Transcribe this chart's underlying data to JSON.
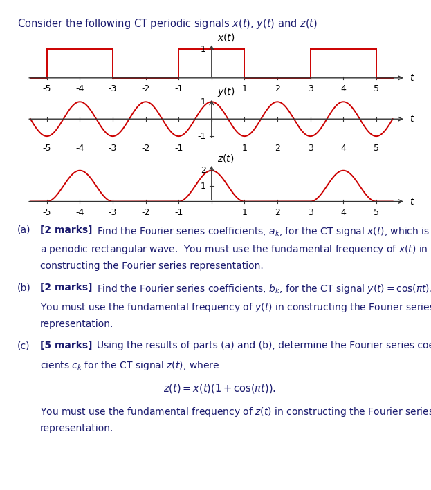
{
  "title_text": "Consider the following CT periodic signals $x(t)$, $y(t)$ and $z(t)$",
  "bg_color": "#ffffff",
  "signal_color": "#cc0000",
  "axis_color": "#333333",
  "text_color": "#1a1a6e",
  "xticks": [
    -5,
    -4,
    -3,
    -2,
    -1,
    0,
    1,
    2,
    3,
    4,
    5
  ],
  "xtick_labels": [
    "-5",
    "-4",
    "-3",
    "-2",
    "-1",
    "",
    "1",
    "2",
    "3",
    "4",
    "5"
  ],
  "x_label": "$t$",
  "xt_label": "$x(t)$",
  "yt_label": "$y(t)$",
  "zt_label": "$z(t)$",
  "fontsize_title": 10.5,
  "fontsize_axis_label": 10,
  "fontsize_tick": 9,
  "fontsize_question": 10,
  "line_width": 1.4
}
